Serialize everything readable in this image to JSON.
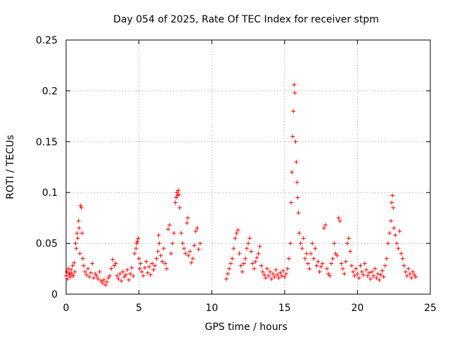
{
  "chart_data": {
    "type": "scatter",
    "title": "Day 054 of 2025, Rate Of TEC Index for receiver stpm",
    "xlabel": "GPS time / hours",
    "ylabel": "ROTI / TECUs",
    "xlim": [
      0,
      25
    ],
    "ylim": [
      0,
      0.25
    ],
    "xticks": [
      "0",
      "5",
      "10",
      "15",
      "20",
      "25"
    ],
    "yticks": [
      "0",
      "0.05",
      "0.1",
      "0.15",
      "0.2",
      "0.25"
    ],
    "xtick_values": [
      0,
      5,
      10,
      15,
      20,
      25
    ],
    "ytick_values": [
      0,
      0.05,
      0.1,
      0.15,
      0.2,
      0.25
    ],
    "grid": true,
    "marker": "plus",
    "color": "#ff0000",
    "series": [
      {
        "name": "ROTI",
        "points": [
          [
            0.0,
            0.018
          ],
          [
            0.05,
            0.022
          ],
          [
            0.1,
            0.015
          ],
          [
            0.15,
            0.025
          ],
          [
            0.2,
            0.019
          ],
          [
            0.25,
            0.021
          ],
          [
            0.3,
            0.017
          ],
          [
            0.35,
            0.024
          ],
          [
            0.4,
            0.02
          ],
          [
            0.45,
            0.028
          ],
          [
            0.5,
            0.018
          ],
          [
            0.55,
            0.031
          ],
          [
            0.6,
            0.022
          ],
          [
            0.65,
            0.05
          ],
          [
            0.7,
            0.045
          ],
          [
            0.75,
            0.06
          ],
          [
            0.8,
            0.055
          ],
          [
            0.85,
            0.072
          ],
          [
            0.9,
            0.065
          ],
          [
            0.95,
            0.04
          ],
          [
            1.0,
            0.087
          ],
          [
            1.05,
            0.085
          ],
          [
            1.1,
            0.06
          ],
          [
            1.15,
            0.035
          ],
          [
            1.2,
            0.028
          ],
          [
            1.3,
            0.022
          ],
          [
            1.4,
            0.019
          ],
          [
            1.5,
            0.025
          ],
          [
            1.6,
            0.017
          ],
          [
            1.7,
            0.021
          ],
          [
            1.8,
            0.03
          ],
          [
            1.9,
            0.016
          ],
          [
            2.0,
            0.02
          ],
          [
            2.1,
            0.018
          ],
          [
            2.2,
            0.015
          ],
          [
            2.3,
            0.022
          ],
          [
            2.4,
            0.013
          ],
          [
            2.5,
            0.011
          ],
          [
            2.6,
            0.014
          ],
          [
            2.7,
            0.009
          ],
          [
            2.8,
            0.012
          ],
          [
            2.9,
            0.016
          ],
          [
            3.0,
            0.018
          ],
          [
            3.1,
            0.025
          ],
          [
            3.2,
            0.034
          ],
          [
            3.3,
            0.028
          ],
          [
            3.4,
            0.03
          ],
          [
            3.5,
            0.018
          ],
          [
            3.6,
            0.015
          ],
          [
            3.7,
            0.02
          ],
          [
            3.8,
            0.013
          ],
          [
            3.9,
            0.022
          ],
          [
            4.0,
            0.017
          ],
          [
            4.1,
            0.019
          ],
          [
            4.2,
            0.024
          ],
          [
            4.3,
            0.014
          ],
          [
            4.4,
            0.02
          ],
          [
            4.5,
            0.026
          ],
          [
            4.6,
            0.018
          ],
          [
            4.7,
            0.04
          ],
          [
            4.8,
            0.045
          ],
          [
            4.85,
            0.05
          ],
          [
            4.9,
            0.052
          ],
          [
            4.95,
            0.055
          ],
          [
            5.0,
            0.035
          ],
          [
            5.05,
            0.025
          ],
          [
            5.1,
            0.03
          ],
          [
            5.2,
            0.022
          ],
          [
            5.3,
            0.018
          ],
          [
            5.4,
            0.026
          ],
          [
            5.5,
            0.032
          ],
          [
            5.6,
            0.021
          ],
          [
            5.7,
            0.027
          ],
          [
            5.8,
            0.019
          ],
          [
            5.9,
            0.03
          ],
          [
            6.0,
            0.024
          ],
          [
            6.1,
            0.028
          ],
          [
            6.2,
            0.035
          ],
          [
            6.3,
            0.042
          ],
          [
            6.35,
            0.058
          ],
          [
            6.4,
            0.05
          ],
          [
            6.5,
            0.038
          ],
          [
            6.6,
            0.032
          ],
          [
            6.7,
            0.045
          ],
          [
            6.8,
            0.03
          ],
          [
            6.9,
            0.025
          ],
          [
            7.0,
            0.064
          ],
          [
            7.1,
            0.068
          ],
          [
            7.2,
            0.04
          ],
          [
            7.3,
            0.05
          ],
          [
            7.4,
            0.06
          ],
          [
            7.5,
            0.09
          ],
          [
            7.55,
            0.095
          ],
          [
            7.6,
            0.1
          ],
          [
            7.65,
            0.097
          ],
          [
            7.7,
            0.102
          ],
          [
            7.75,
            0.098
          ],
          [
            7.8,
            0.085
          ],
          [
            7.9,
            0.06
          ],
          [
            8.0,
            0.05
          ],
          [
            8.1,
            0.045
          ],
          [
            8.2,
            0.04
          ],
          [
            8.3,
            0.07
          ],
          [
            8.35,
            0.075
          ],
          [
            8.4,
            0.038
          ],
          [
            8.5,
            0.042
          ],
          [
            8.6,
            0.031
          ],
          [
            8.7,
            0.035
          ],
          [
            8.8,
            0.048
          ],
          [
            8.9,
            0.062
          ],
          [
            9.0,
            0.065
          ],
          [
            9.1,
            0.044
          ],
          [
            9.2,
            0.05
          ],
          [
            11.0,
            0.015
          ],
          [
            11.1,
            0.02
          ],
          [
            11.2,
            0.025
          ],
          [
            11.3,
            0.03
          ],
          [
            11.4,
            0.035
          ],
          [
            11.5,
            0.045
          ],
          [
            11.6,
            0.055
          ],
          [
            11.7,
            0.06
          ],
          [
            11.8,
            0.063
          ],
          [
            11.9,
            0.04
          ],
          [
            12.0,
            0.028
          ],
          [
            12.1,
            0.022
          ],
          [
            12.2,
            0.03
          ],
          [
            12.3,
            0.035
          ],
          [
            12.4,
            0.045
          ],
          [
            12.5,
            0.05
          ],
          [
            12.6,
            0.055
          ],
          [
            12.7,
            0.042
          ],
          [
            12.8,
            0.03
          ],
          [
            12.9,
            0.025
          ],
          [
            13.0,
            0.032
          ],
          [
            13.1,
            0.036
          ],
          [
            13.2,
            0.04
          ],
          [
            13.3,
            0.047
          ],
          [
            13.4,
            0.028
          ],
          [
            13.5,
            0.022
          ],
          [
            13.6,
            0.019
          ],
          [
            13.7,
            0.016
          ],
          [
            13.8,
            0.025
          ],
          [
            13.9,
            0.018
          ],
          [
            14.0,
            0.022
          ],
          [
            14.1,
            0.015
          ],
          [
            14.2,
            0.02
          ],
          [
            14.3,
            0.017
          ],
          [
            14.4,
            0.024
          ],
          [
            14.5,
            0.019
          ],
          [
            14.6,
            0.016
          ],
          [
            14.7,
            0.021
          ],
          [
            14.8,
            0.018
          ],
          [
            14.9,
            0.023
          ],
          [
            15.0,
            0.017
          ],
          [
            15.1,
            0.02
          ],
          [
            15.2,
            0.025
          ],
          [
            15.3,
            0.035
          ],
          [
            15.4,
            0.05
          ],
          [
            15.45,
            0.09
          ],
          [
            15.5,
            0.12
          ],
          [
            15.55,
            0.155
          ],
          [
            15.6,
            0.18
          ],
          [
            15.65,
            0.206
          ],
          [
            15.7,
            0.198
          ],
          [
            15.75,
            0.15
          ],
          [
            15.8,
            0.13
          ],
          [
            15.85,
            0.11
          ],
          [
            15.9,
            0.095
          ],
          [
            15.95,
            0.08
          ],
          [
            16.0,
            0.06
          ],
          [
            16.1,
            0.05
          ],
          [
            16.2,
            0.045
          ],
          [
            16.3,
            0.055
          ],
          [
            16.4,
            0.035
          ],
          [
            16.5,
            0.04
          ],
          [
            16.6,
            0.03
          ],
          [
            16.7,
            0.025
          ],
          [
            16.8,
            0.04
          ],
          [
            16.9,
            0.05
          ],
          [
            17.0,
            0.035
          ],
          [
            17.1,
            0.045
          ],
          [
            17.2,
            0.028
          ],
          [
            17.3,
            0.032
          ],
          [
            17.4,
            0.022
          ],
          [
            17.5,
            0.027
          ],
          [
            17.6,
            0.03
          ],
          [
            17.7,
            0.065
          ],
          [
            17.8,
            0.068
          ],
          [
            17.9,
            0.025
          ],
          [
            18.0,
            0.02
          ],
          [
            18.1,
            0.018
          ],
          [
            18.2,
            0.03
          ],
          [
            18.3,
            0.035
          ],
          [
            18.4,
            0.05
          ],
          [
            18.5,
            0.04
          ],
          [
            18.6,
            0.038
          ],
          [
            18.7,
            0.075
          ],
          [
            18.8,
            0.072
          ],
          [
            18.9,
            0.03
          ],
          [
            19.0,
            0.025
          ],
          [
            19.1,
            0.02
          ],
          [
            19.2,
            0.032
          ],
          [
            19.3,
            0.05
          ],
          [
            19.4,
            0.055
          ],
          [
            19.5,
            0.042
          ],
          [
            19.6,
            0.028
          ],
          [
            19.7,
            0.022
          ],
          [
            19.8,
            0.018
          ],
          [
            19.9,
            0.025
          ],
          [
            20.0,
            0.02
          ],
          [
            20.1,
            0.016
          ],
          [
            20.2,
            0.028
          ],
          [
            20.3,
            0.022
          ],
          [
            20.4,
            0.019
          ],
          [
            20.5,
            0.03
          ],
          [
            20.6,
            0.024
          ],
          [
            20.7,
            0.018
          ],
          [
            20.8,
            0.021
          ],
          [
            20.9,
            0.015
          ],
          [
            21.0,
            0.022
          ],
          [
            21.1,
            0.018
          ],
          [
            21.2,
            0.025
          ],
          [
            21.3,
            0.016
          ],
          [
            21.4,
            0.02
          ],
          [
            21.5,
            0.014
          ],
          [
            21.6,
            0.019
          ],
          [
            21.7,
            0.023
          ],
          [
            21.8,
            0.017
          ],
          [
            21.9,
            0.028
          ],
          [
            22.0,
            0.035
          ],
          [
            22.1,
            0.05
          ],
          [
            22.2,
            0.06
          ],
          [
            22.3,
            0.072
          ],
          [
            22.35,
            0.09
          ],
          [
            22.4,
            0.097
          ],
          [
            22.45,
            0.085
          ],
          [
            22.5,
            0.065
          ],
          [
            22.6,
            0.058
          ],
          [
            22.7,
            0.05
          ],
          [
            22.8,
            0.045
          ],
          [
            22.9,
            0.062
          ],
          [
            23.0,
            0.04
          ],
          [
            23.1,
            0.035
          ],
          [
            23.2,
            0.028
          ],
          [
            23.3,
            0.022
          ],
          [
            23.4,
            0.018
          ],
          [
            23.5,
            0.025
          ],
          [
            23.6,
            0.02
          ],
          [
            23.7,
            0.016
          ],
          [
            23.8,
            0.022
          ],
          [
            23.9,
            0.019
          ],
          [
            24.0,
            0.017
          ]
        ]
      }
    ]
  }
}
